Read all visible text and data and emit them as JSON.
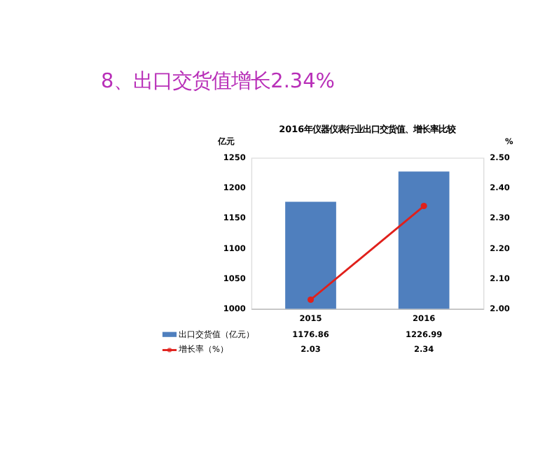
{
  "chart_data": {
    "type": "bar",
    "title": "8、出口交货值增长2.34%",
    "subtitle": "2016年仪器仪表行业出口交货值、增长率比较",
    "ylabel": "亿元",
    "y2label": "%",
    "categories": [
      "2015",
      "2016"
    ],
    "series": [
      {
        "name": "出口交货值（亿元）",
        "color": "#4f7fbe",
        "values": [
          1176.86,
          1226.99
        ]
      },
      {
        "name": "增长率（%）",
        "type": "line",
        "axis": "y2",
        "color": "#e0201b",
        "values": [
          2.03,
          2.34
        ]
      }
    ],
    "ylim": [
      1000,
      1250
    ],
    "yticks": [
      1000,
      1050,
      1100,
      1150,
      1200,
      1250
    ],
    "y2lim": [
      2.0,
      2.5
    ],
    "y2ticks": [
      {
        "value": 2.0,
        "label": "2.00"
      },
      {
        "value": 2.1,
        "label": "2.10"
      },
      {
        "value": 2.2,
        "label": "2.20"
      },
      {
        "value": 2.3,
        "label": "2.30"
      },
      {
        "value": 2.4,
        "label": "2.40"
      },
      {
        "value": 2.5,
        "label": "2.50"
      }
    ],
    "grid": false,
    "legend": "bottom",
    "data_labels": true,
    "marker": "circle",
    "line_style": "solid"
  }
}
